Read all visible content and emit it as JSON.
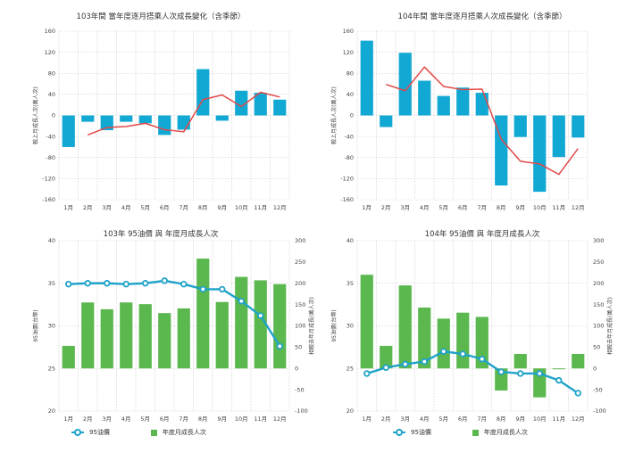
{
  "chart_data": [
    {
      "type": "bar",
      "title": "103年間 當年度逐月搭乘人次成長變化（含季節）",
      "ylabel": "較上月成長人次(萬人次)",
      "categories": [
        "1月",
        "2月",
        "3月",
        "4月",
        "5月",
        "6月",
        "7月",
        "8月",
        "9月",
        "10月",
        "11月",
        "12月"
      ],
      "ylim": [
        -160,
        160
      ],
      "yticks": [
        -160,
        -120,
        -80,
        -40,
        0,
        40,
        80,
        120,
        160
      ],
      "series": [
        {
          "kind": "bar",
          "color": "#12a8d4",
          "values": [
            -60,
            -12,
            -28,
            -12,
            -15,
            -37,
            -27,
            88,
            -10,
            47,
            43,
            30
          ]
        },
        {
          "kind": "line",
          "color": "#e24848",
          "values": [
            null,
            -37,
            -23,
            -21,
            -15,
            -27,
            -31,
            30,
            39,
            17,
            44,
            35
          ]
        }
      ]
    },
    {
      "type": "bar",
      "title": "104年間 當年度逐月搭乘人次成長變化（含季節）",
      "ylabel": "較上月成長人次(萬人次)",
      "categories": [
        "1月",
        "2月",
        "3月",
        "4月",
        "5月",
        "6月",
        "7月",
        "8月",
        "9月",
        "10月",
        "11月",
        "12月"
      ],
      "ylim": [
        -160,
        160
      ],
      "yticks": [
        -160,
        -120,
        -80,
        -40,
        0,
        40,
        80,
        120,
        160
      ],
      "series": [
        {
          "kind": "bar",
          "color": "#12a8d4",
          "values": [
            142,
            -22,
            119,
            66,
            37,
            53,
            43,
            -133,
            -41,
            -145,
            -79,
            -42
          ]
        },
        {
          "kind": "line",
          "color": "#e24848",
          "values": [
            null,
            59,
            47,
            92,
            55,
            49,
            50,
            -45,
            -87,
            -92,
            -112,
            -63
          ]
        }
      ]
    },
    {
      "type": "bar",
      "title": "103年 95油價 與 年度月成長人次",
      "ylabel": "95油價(台幣)",
      "y2label": "相較去年月成長(萬人次)",
      "categories": [
        "1月",
        "2月",
        "3月",
        "4月",
        "5月",
        "6月",
        "7月",
        "8月",
        "9月",
        "10月",
        "11月",
        "12月"
      ],
      "ylim": [
        20,
        40
      ],
      "yticks": [
        20,
        25,
        30,
        35,
        40
      ],
      "y2lim": [
        -100,
        300
      ],
      "y2ticks": [
        -100,
        -50,
        0,
        50,
        100,
        150,
        200,
        250,
        300
      ],
      "series": [
        {
          "name": "95油價",
          "kind": "line",
          "axis": "left",
          "color": "#1fa2c9",
          "values": [
            34.9,
            35.0,
            35.0,
            34.9,
            35.0,
            35.3,
            34.9,
            34.3,
            34.3,
            32.9,
            31.2,
            27.6
          ]
        },
        {
          "name": "年度月成長人次",
          "kind": "bar",
          "axis": "right",
          "color": "#5bb84f",
          "values": [
            53,
            155,
            139,
            155,
            151,
            130,
            141,
            258,
            156,
            215,
            207,
            198
          ]
        }
      ],
      "legend": "bottom"
    },
    {
      "type": "bar",
      "title": "104年  95油價 與 年度月成長人次",
      "ylabel": "95油價(台幣)",
      "y2label": "相較去年月成長(萬人次)",
      "categories": [
        "1月",
        "2月",
        "3月",
        "4月",
        "5月",
        "6月",
        "7月",
        "8月",
        "9月",
        "10月",
        "11月",
        "12月"
      ],
      "ylim": [
        20,
        40
      ],
      "yticks": [
        20,
        25,
        30,
        35,
        40
      ],
      "y2lim": [
        -100,
        300
      ],
      "y2ticks": [
        -100,
        -50,
        0,
        50,
        100,
        150,
        200,
        250,
        300
      ],
      "series": [
        {
          "name": "95油價",
          "kind": "line",
          "axis": "left",
          "color": "#1fa2c9",
          "values": [
            24.4,
            25.1,
            25.5,
            25.8,
            27.0,
            26.7,
            26.1,
            24.6,
            24.4,
            24.4,
            23.6,
            22.1
          ]
        },
        {
          "name": "年度月成長人次",
          "kind": "bar",
          "axis": "right",
          "color": "#5bb84f",
          "values": [
            220,
            53,
            195,
            143,
            117,
            131,
            121,
            -52,
            34,
            -68,
            -2,
            34
          ]
        }
      ],
      "legend": "bottom"
    }
  ]
}
